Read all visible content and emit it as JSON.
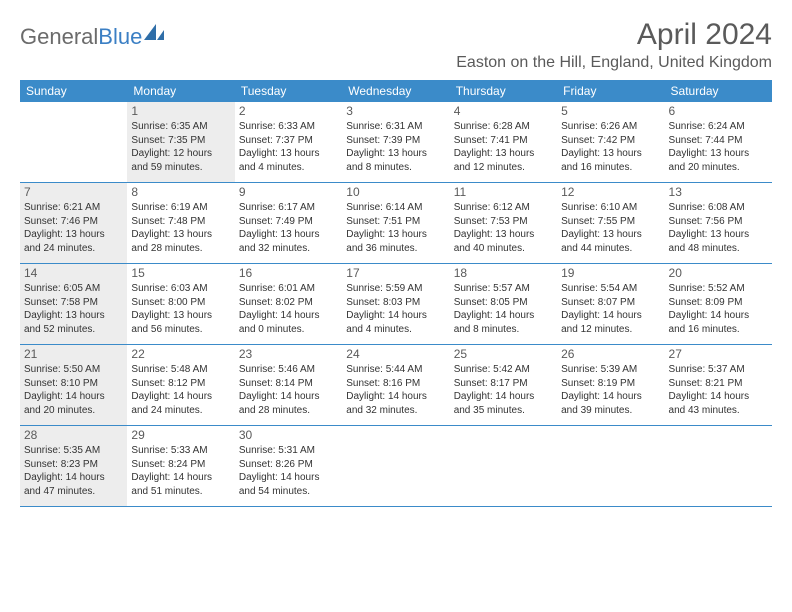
{
  "logo": {
    "text1": "General",
    "text2": "Blue"
  },
  "title": "April 2024",
  "location": "Easton on the Hill, England, United Kingdom",
  "colors": {
    "header_bg": "#3b8bc9",
    "header_text": "#ffffff",
    "shade_bg": "#ededed",
    "rule": "#3b8bc9",
    "text": "#333333",
    "muted": "#5a5a5a"
  },
  "dow": [
    "Sunday",
    "Monday",
    "Tuesday",
    "Wednesday",
    "Thursday",
    "Friday",
    "Saturday"
  ],
  "weeks": [
    [
      {
        "n": "",
        "shade": false,
        "sr": "",
        "ss": "",
        "dl": ""
      },
      {
        "n": "1",
        "shade": true,
        "sr": "6:35 AM",
        "ss": "7:35 PM",
        "dl": "12 hours and 59 minutes."
      },
      {
        "n": "2",
        "shade": false,
        "sr": "6:33 AM",
        "ss": "7:37 PM",
        "dl": "13 hours and 4 minutes."
      },
      {
        "n": "3",
        "shade": false,
        "sr": "6:31 AM",
        "ss": "7:39 PM",
        "dl": "13 hours and 8 minutes."
      },
      {
        "n": "4",
        "shade": false,
        "sr": "6:28 AM",
        "ss": "7:41 PM",
        "dl": "13 hours and 12 minutes."
      },
      {
        "n": "5",
        "shade": false,
        "sr": "6:26 AM",
        "ss": "7:42 PM",
        "dl": "13 hours and 16 minutes."
      },
      {
        "n": "6",
        "shade": false,
        "sr": "6:24 AM",
        "ss": "7:44 PM",
        "dl": "13 hours and 20 minutes."
      }
    ],
    [
      {
        "n": "7",
        "shade": true,
        "sr": "6:21 AM",
        "ss": "7:46 PM",
        "dl": "13 hours and 24 minutes."
      },
      {
        "n": "8",
        "shade": false,
        "sr": "6:19 AM",
        "ss": "7:48 PM",
        "dl": "13 hours and 28 minutes."
      },
      {
        "n": "9",
        "shade": false,
        "sr": "6:17 AM",
        "ss": "7:49 PM",
        "dl": "13 hours and 32 minutes."
      },
      {
        "n": "10",
        "shade": false,
        "sr": "6:14 AM",
        "ss": "7:51 PM",
        "dl": "13 hours and 36 minutes."
      },
      {
        "n": "11",
        "shade": false,
        "sr": "6:12 AM",
        "ss": "7:53 PM",
        "dl": "13 hours and 40 minutes."
      },
      {
        "n": "12",
        "shade": false,
        "sr": "6:10 AM",
        "ss": "7:55 PM",
        "dl": "13 hours and 44 minutes."
      },
      {
        "n": "13",
        "shade": false,
        "sr": "6:08 AM",
        "ss": "7:56 PM",
        "dl": "13 hours and 48 minutes."
      }
    ],
    [
      {
        "n": "14",
        "shade": true,
        "sr": "6:05 AM",
        "ss": "7:58 PM",
        "dl": "13 hours and 52 minutes."
      },
      {
        "n": "15",
        "shade": false,
        "sr": "6:03 AM",
        "ss": "8:00 PM",
        "dl": "13 hours and 56 minutes."
      },
      {
        "n": "16",
        "shade": false,
        "sr": "6:01 AM",
        "ss": "8:02 PM",
        "dl": "14 hours and 0 minutes."
      },
      {
        "n": "17",
        "shade": false,
        "sr": "5:59 AM",
        "ss": "8:03 PM",
        "dl": "14 hours and 4 minutes."
      },
      {
        "n": "18",
        "shade": false,
        "sr": "5:57 AM",
        "ss": "8:05 PM",
        "dl": "14 hours and 8 minutes."
      },
      {
        "n": "19",
        "shade": false,
        "sr": "5:54 AM",
        "ss": "8:07 PM",
        "dl": "14 hours and 12 minutes."
      },
      {
        "n": "20",
        "shade": false,
        "sr": "5:52 AM",
        "ss": "8:09 PM",
        "dl": "14 hours and 16 minutes."
      }
    ],
    [
      {
        "n": "21",
        "shade": true,
        "sr": "5:50 AM",
        "ss": "8:10 PM",
        "dl": "14 hours and 20 minutes."
      },
      {
        "n": "22",
        "shade": false,
        "sr": "5:48 AM",
        "ss": "8:12 PM",
        "dl": "14 hours and 24 minutes."
      },
      {
        "n": "23",
        "shade": false,
        "sr": "5:46 AM",
        "ss": "8:14 PM",
        "dl": "14 hours and 28 minutes."
      },
      {
        "n": "24",
        "shade": false,
        "sr": "5:44 AM",
        "ss": "8:16 PM",
        "dl": "14 hours and 32 minutes."
      },
      {
        "n": "25",
        "shade": false,
        "sr": "5:42 AM",
        "ss": "8:17 PM",
        "dl": "14 hours and 35 minutes."
      },
      {
        "n": "26",
        "shade": false,
        "sr": "5:39 AM",
        "ss": "8:19 PM",
        "dl": "14 hours and 39 minutes."
      },
      {
        "n": "27",
        "shade": false,
        "sr": "5:37 AM",
        "ss": "8:21 PM",
        "dl": "14 hours and 43 minutes."
      }
    ],
    [
      {
        "n": "28",
        "shade": true,
        "sr": "5:35 AM",
        "ss": "8:23 PM",
        "dl": "14 hours and 47 minutes."
      },
      {
        "n": "29",
        "shade": false,
        "sr": "5:33 AM",
        "ss": "8:24 PM",
        "dl": "14 hours and 51 minutes."
      },
      {
        "n": "30",
        "shade": false,
        "sr": "5:31 AM",
        "ss": "8:26 PM",
        "dl": "14 hours and 54 minutes."
      },
      {
        "n": "",
        "shade": false,
        "sr": "",
        "ss": "",
        "dl": ""
      },
      {
        "n": "",
        "shade": false,
        "sr": "",
        "ss": "",
        "dl": ""
      },
      {
        "n": "",
        "shade": false,
        "sr": "",
        "ss": "",
        "dl": ""
      },
      {
        "n": "",
        "shade": false,
        "sr": "",
        "ss": "",
        "dl": ""
      }
    ]
  ],
  "labels": {
    "sunrise": "Sunrise:",
    "sunset": "Sunset:",
    "daylight": "Daylight:"
  }
}
